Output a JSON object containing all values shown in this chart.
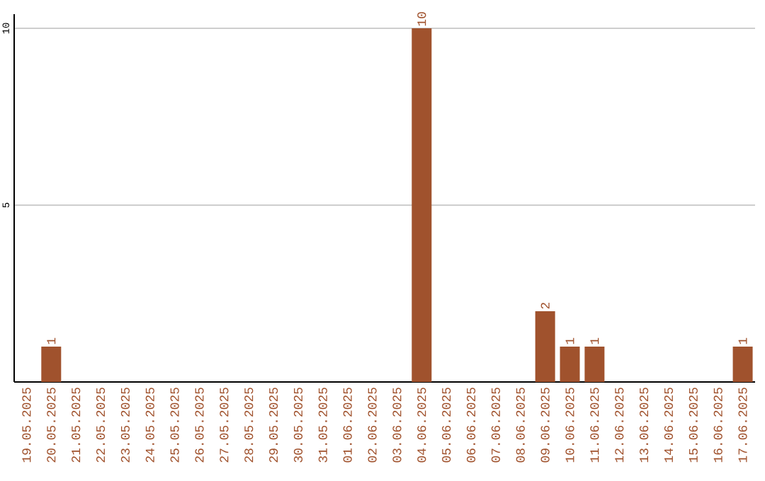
{
  "chart_data": {
    "type": "bar",
    "categories": [
      "19.05.2025",
      "20.05.2025",
      "21.05.2025",
      "22.05.2025",
      "23.05.2025",
      "24.05.2025",
      "25.05.2025",
      "26.05.2025",
      "27.05.2025",
      "28.05.2025",
      "29.05.2025",
      "30.05.2025",
      "31.05.2025",
      "01.06.2025",
      "02.06.2025",
      "03.06.2025",
      "04.06.2025",
      "05.06.2025",
      "06.06.2025",
      "07.06.2025",
      "08.06.2025",
      "09.06.2025",
      "10.06.2025",
      "11.06.2025",
      "12.06.2025",
      "13.06.2025",
      "14.06.2025",
      "15.06.2025",
      "16.06.2025",
      "17.06.2025"
    ],
    "values": [
      0,
      1,
      0,
      0,
      0,
      0,
      0,
      0,
      0,
      0,
      0,
      0,
      0,
      0,
      0,
      0,
      10,
      0,
      0,
      0,
      0,
      2,
      1,
      1,
      0,
      0,
      0,
      0,
      0,
      1
    ],
    "value_labels": [
      null,
      "1",
      null,
      null,
      null,
      null,
      null,
      null,
      null,
      null,
      null,
      null,
      null,
      null,
      null,
      null,
      "10",
      null,
      null,
      null,
      null,
      "2",
      "1",
      "1",
      null,
      null,
      null,
      null,
      null,
      "1"
    ],
    "color": "#a0522d",
    "ylim": [
      0,
      10.4
    ],
    "yticks": [
      5,
      10
    ],
    "grid": "y"
  }
}
